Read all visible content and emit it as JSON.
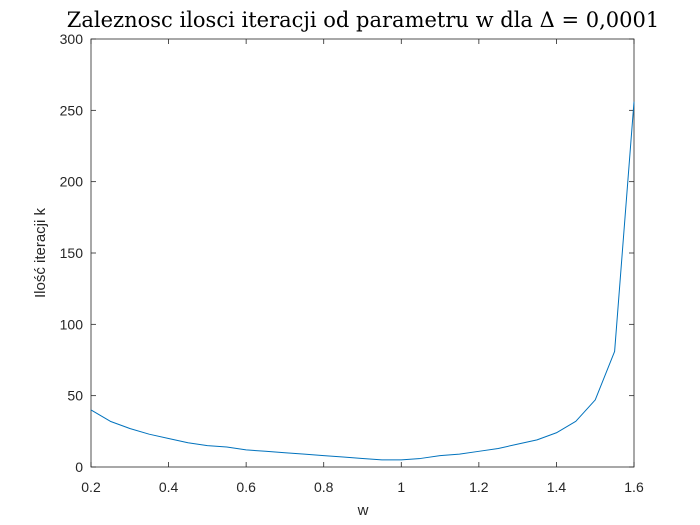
{
  "chart_data": {
    "type": "line",
    "title": "Zaleznosc ilosci iteracji od parametru w dla Δ = 0,0001",
    "xlabel": "w",
    "ylabel": "Ilość iteracji k",
    "xlim": [
      0.2,
      1.6
    ],
    "ylim": [
      0,
      300
    ],
    "xticks": [
      0.2,
      0.4,
      0.6,
      0.8,
      1.0,
      1.2,
      1.4,
      1.6
    ],
    "xtick_labels": [
      "0.2",
      "0.4",
      "0.6",
      "0.8",
      "1",
      "1.2",
      "1.4",
      "1.6"
    ],
    "yticks": [
      0,
      50,
      100,
      150,
      200,
      250,
      300
    ],
    "ytick_labels": [
      "0",
      "50",
      "100",
      "150",
      "200",
      "250",
      "300"
    ],
    "grid": false,
    "series": [
      {
        "color": "#0072bd",
        "x": [
          0.2,
          0.25,
          0.3,
          0.35,
          0.4,
          0.45,
          0.5,
          0.55,
          0.6,
          0.65,
          0.7,
          0.75,
          0.8,
          0.85,
          0.9,
          0.95,
          1.0,
          1.05,
          1.1,
          1.15,
          1.2,
          1.25,
          1.3,
          1.35,
          1.4,
          1.45,
          1.5,
          1.55,
          1.6
        ],
        "values": [
          40,
          32,
          27,
          23,
          20,
          17,
          15,
          14,
          12,
          11,
          10,
          9,
          8,
          7,
          6,
          5,
          5,
          6,
          8,
          9,
          11,
          13,
          16,
          19,
          24,
          32,
          47,
          81,
          256
        ]
      }
    ]
  }
}
